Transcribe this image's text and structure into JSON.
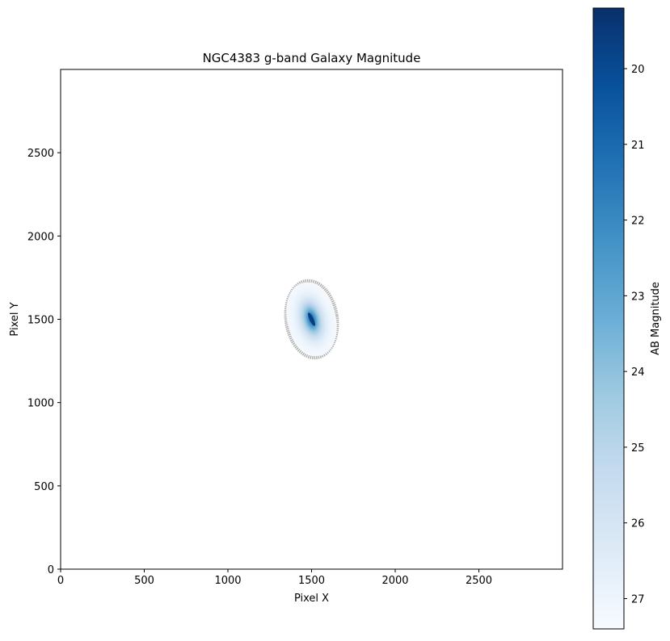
{
  "chart_data": {
    "type": "heatmap",
    "title": "NGC4383 g-band Galaxy Magnitude",
    "xlabel": "Pixel X",
    "ylabel": "Pixel Y",
    "xlim": [
      0,
      3000
    ],
    "ylim": [
      0,
      3000
    ],
    "xticks": [
      0,
      500,
      1000,
      1500,
      2000,
      2500
    ],
    "yticks": [
      0,
      500,
      1000,
      1500,
      2000,
      2500
    ],
    "grid": false,
    "colormap": "Blues_r",
    "colorbar": {
      "label": "AB Magnitude",
      "range": [
        27.4,
        19.2
      ],
      "ticks": [
        20,
        21,
        22,
        23,
        24,
        25,
        26,
        27
      ],
      "colors": [
        "#f7fbff",
        "#deebf7",
        "#c6dbef",
        "#9ecae1",
        "#6baed6",
        "#4292c6",
        "#2171b5",
        "#08519c",
        "#08306b"
      ]
    },
    "galaxy": {
      "center": [
        1500,
        1500
      ],
      "semi_major_axis": 225,
      "semi_minor_axis": 145,
      "peak_magnitude": 19.6,
      "edge_magnitude": 27.2,
      "outline_color": "#b0b0b0"
    }
  }
}
